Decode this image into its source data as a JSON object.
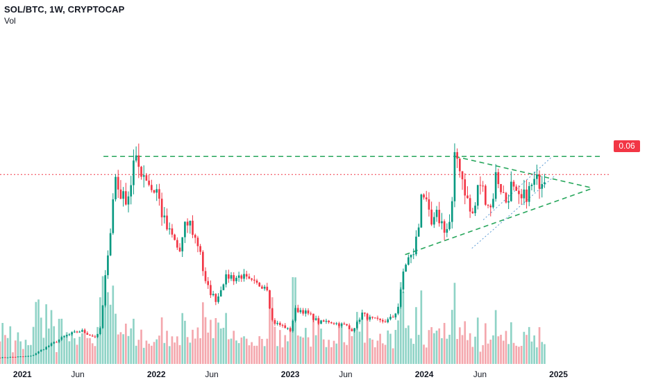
{
  "header": {
    "title": "SOL/BTC, 1W, CRYPTOCAP",
    "volume_label": "Vol"
  },
  "price_tag": {
    "value": "0.06",
    "color": "#f23645"
  },
  "colors": {
    "up": "#089981",
    "down": "#f23645",
    "vol_up": "#8fd3c6",
    "vol_down": "#f4a7ad",
    "trend": "#26a65b",
    "channel": "#5b9bd5",
    "price_line": "#f23645"
  },
  "chart_data": {
    "type": "candlestick",
    "symbol": "SOL/BTC",
    "interval": "1W",
    "x_ticks": [
      {
        "label": "2021",
        "date": "2021-01-01",
        "bold": true
      },
      {
        "label": "Jun",
        "date": "2021-06-01",
        "bold": false
      },
      {
        "label": "2022",
        "date": "2022-01-01",
        "bold": true
      },
      {
        "label": "Jun",
        "date": "2022-06-01",
        "bold": false
      },
      {
        "label": "2023",
        "date": "2023-01-01",
        "bold": true
      },
      {
        "label": "Jun",
        "date": "2023-06-01",
        "bold": false
      },
      {
        "label": "2024",
        "date": "2024-01-01",
        "bold": true
      },
      {
        "label": "Jun",
        "date": "2024-06-01",
        "bold": false
      },
      {
        "label": "2025",
        "date": "2025-01-01",
        "bold": true
      }
    ],
    "last_price": 0.06,
    "x_range": [
      "2020-11-01",
      "2025-05-20"
    ],
    "y_range": [
      0.0,
      0.082
    ],
    "volume_range": [
      0,
      100
    ],
    "anchors": [
      [
        "2020-11-01",
        0.002
      ],
      [
        "2021-01-25",
        0.0025
      ],
      [
        "2021-05-01",
        0.009
      ],
      [
        "2021-06-10",
        0.0105
      ],
      [
        "2021-07-15",
        0.0085
      ],
      [
        "2021-07-30",
        0.0093
      ],
      [
        "2021-08-10",
        0.02
      ],
      [
        "2021-08-20",
        0.034
      ],
      [
        "2021-09-01",
        0.045
      ],
      [
        "2021-09-10",
        0.06
      ],
      [
        "2021-09-20",
        0.055
      ],
      [
        "2021-10-05",
        0.052
      ],
      [
        "2021-10-20",
        0.054
      ],
      [
        "2021-11-01",
        0.064
      ],
      [
        "2021-11-15",
        0.062
      ],
      [
        "2021-12-06",
        0.059
      ],
      [
        "2021-12-20",
        0.055
      ],
      [
        "2022-01-03",
        0.055
      ],
      [
        "2022-01-17",
        0.047
      ],
      [
        "2022-02-01",
        0.042
      ],
      [
        "2022-02-15",
        0.04
      ],
      [
        "2022-03-05",
        0.035
      ],
      [
        "2022-03-20",
        0.043
      ],
      [
        "2022-04-01",
        0.045
      ],
      [
        "2022-04-15",
        0.04
      ],
      [
        "2022-05-01",
        0.036
      ],
      [
        "2022-05-12",
        0.026
      ],
      [
        "2022-06-01",
        0.022
      ],
      [
        "2022-06-15",
        0.02
      ],
      [
        "2022-07-01",
        0.026
      ],
      [
        "2022-07-20",
        0.028
      ],
      [
        "2022-08-01",
        0.027
      ],
      [
        "2022-08-20",
        0.028
      ],
      [
        "2022-09-10",
        0.026
      ],
      [
        "2022-10-01",
        0.025
      ],
      [
        "2022-10-25",
        0.025
      ],
      [
        "2022-11-01",
        0.024
      ],
      [
        "2022-11-10",
        0.014
      ],
      [
        "2022-11-20",
        0.013
      ],
      [
        "2022-12-20",
        0.0115
      ],
      [
        "2022-12-31",
        0.0102
      ],
      [
        "2023-01-15",
        0.017
      ],
      [
        "2023-02-01",
        0.017
      ],
      [
        "2023-03-01",
        0.015
      ],
      [
        "2023-03-20",
        0.013
      ],
      [
        "2023-04-15",
        0.0135
      ],
      [
        "2023-05-15",
        0.0125
      ],
      [
        "2023-06-01",
        0.0123
      ],
      [
        "2023-06-15",
        0.0105
      ],
      [
        "2023-07-01",
        0.0125
      ],
      [
        "2023-07-15",
        0.016
      ],
      [
        "2023-08-01",
        0.0145
      ],
      [
        "2023-09-01",
        0.0135
      ],
      [
        "2023-09-20",
        0.0135
      ],
      [
        "2023-10-10",
        0.015
      ],
      [
        "2023-10-25",
        0.019
      ],
      [
        "2023-11-05",
        0.029
      ],
      [
        "2023-11-15",
        0.033
      ],
      [
        "2023-12-01",
        0.034
      ],
      [
        "2023-12-18",
        0.044
      ],
      [
        "2023-12-25",
        0.057
      ],
      [
        "2024-01-08",
        0.049
      ],
      [
        "2024-01-22",
        0.043
      ],
      [
        "2024-02-05",
        0.047
      ],
      [
        "2024-02-15",
        0.045
      ],
      [
        "2024-03-01",
        0.042
      ],
      [
        "2024-03-15",
        0.046
      ],
      [
        "2024-03-25",
        0.066
      ],
      [
        "2024-04-05",
        0.064
      ],
      [
        "2024-04-15",
        0.058
      ],
      [
        "2024-04-25",
        0.053
      ],
      [
        "2024-05-05",
        0.048
      ],
      [
        "2024-05-15",
        0.047
      ],
      [
        "2024-05-30",
        0.058
      ],
      [
        "2024-06-15",
        0.053
      ],
      [
        "2024-07-01",
        0.049
      ],
      [
        "2024-07-15",
        0.06
      ],
      [
        "2024-07-30",
        0.055
      ],
      [
        "2024-08-10",
        0.051
      ],
      [
        "2024-08-25",
        0.056
      ],
      [
        "2024-09-10",
        0.052
      ],
      [
        "2024-09-20",
        0.051
      ],
      [
        "2024-10-01",
        0.053
      ],
      [
        "2024-10-15",
        0.055
      ],
      [
        "2024-10-25",
        0.057
      ],
      [
        "2024-11-10",
        0.058
      ],
      [
        "2024-11-25",
        0.06
      ]
    ],
    "drawings": [
      {
        "kind": "dashed",
        "color": "trend",
        "from": [
          "2021-08-10",
          0.0655
        ],
        "to": [
          "2025-04-30",
          0.0655
        ]
      },
      {
        "kind": "dashed",
        "color": "trend",
        "from": [
          "2024-03-25",
          0.0655
        ],
        "to": [
          "2025-04-05",
          0.0555
        ]
      },
      {
        "kind": "dashed",
        "color": "trend",
        "from": [
          "2023-11-10",
          0.0345
        ],
        "to": [
          "2025-04-05",
          0.0555
        ]
      },
      {
        "kind": "dotted",
        "color": "channel",
        "from": [
          "2024-05-10",
          0.0365
        ],
        "to": [
          "2024-12-20",
          0.0592
        ]
      },
      {
        "kind": "dotted",
        "color": "channel",
        "from": [
          "2024-06-10",
          0.0455
        ],
        "to": [
          "2024-12-15",
          0.0655
        ]
      },
      {
        "kind": "dotted",
        "color": "price_line",
        "from": [
          "2020-11-01",
          0.0598
        ],
        "to": [
          "2025-05-20",
          0.0598
        ]
      }
    ]
  }
}
